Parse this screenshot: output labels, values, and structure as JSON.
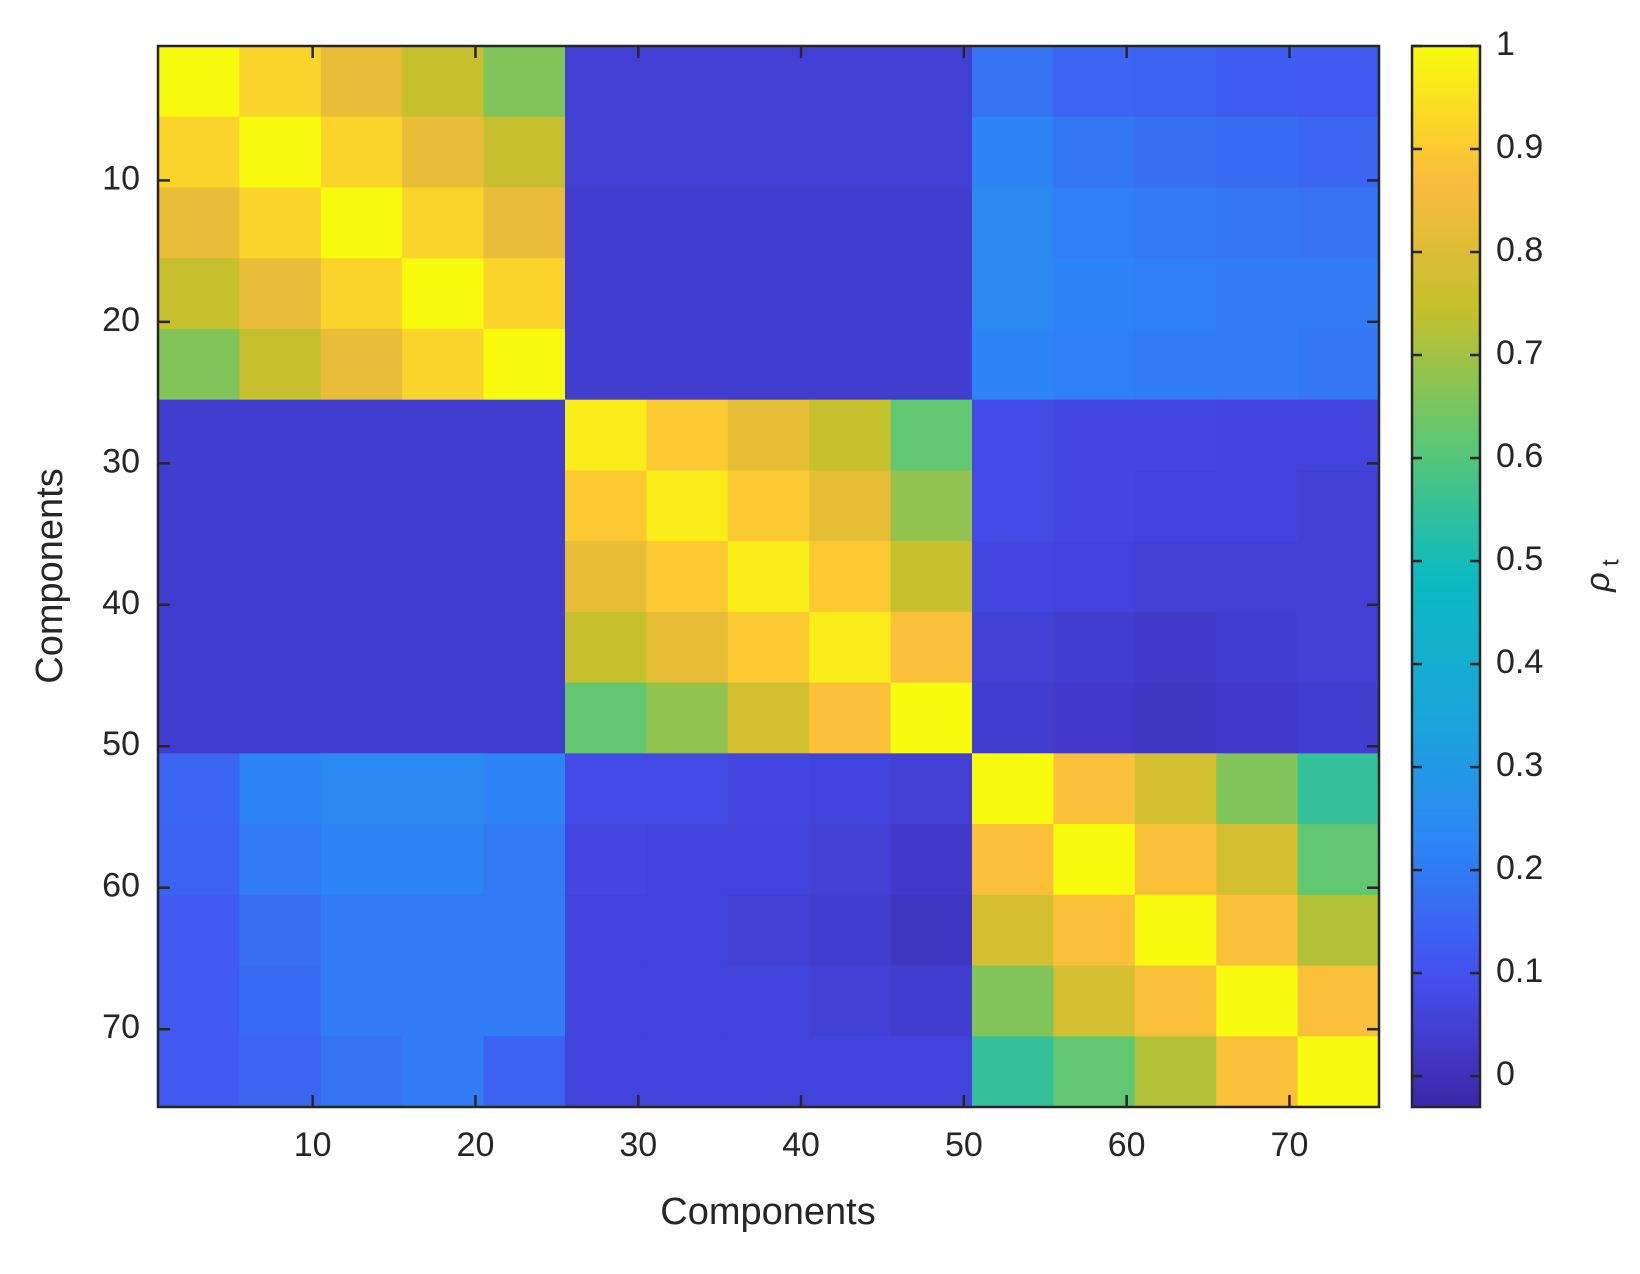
{
  "chart_data": {
    "type": "heatmap",
    "xlabel": "Components",
    "ylabel": "Components",
    "x": [
      3,
      8,
      13,
      18,
      23,
      28,
      33,
      38,
      43,
      48,
      53,
      58,
      63,
      68,
      73
    ],
    "y": [
      3,
      8,
      13,
      18,
      23,
      28,
      33,
      38,
      43,
      48,
      53,
      58,
      63,
      68,
      73
    ],
    "values": [
      [
        1,
        0.92,
        0.83,
        0.75,
        0.66,
        0.05,
        0.05,
        0.05,
        0.05,
        0.05,
        0.18,
        0.15,
        0.14,
        0.13,
        0.12
      ],
      [
        0.92,
        1,
        0.92,
        0.83,
        0.75,
        0.05,
        0.05,
        0.05,
        0.05,
        0.05,
        0.22,
        0.19,
        0.17,
        0.16,
        0.15
      ],
      [
        0.83,
        0.92,
        1,
        0.92,
        0.83,
        0.04,
        0.04,
        0.04,
        0.04,
        0.04,
        0.24,
        0.21,
        0.2,
        0.19,
        0.18
      ],
      [
        0.75,
        0.83,
        0.92,
        1,
        0.92,
        0.04,
        0.04,
        0.04,
        0.04,
        0.04,
        0.24,
        0.22,
        0.21,
        0.2,
        0.2
      ],
      [
        0.66,
        0.75,
        0.83,
        0.92,
        1,
        0.04,
        0.04,
        0.04,
        0.04,
        0.04,
        0.22,
        0.21,
        0.2,
        0.2,
        0.19
      ],
      [
        0.04,
        0.04,
        0.04,
        0.04,
        0.04,
        0.97,
        0.9,
        0.82,
        0.75,
        0.62,
        0.08,
        0.07,
        0.07,
        0.06,
        0.06
      ],
      [
        0.04,
        0.04,
        0.04,
        0.04,
        0.04,
        0.9,
        0.97,
        0.9,
        0.82,
        0.68,
        0.08,
        0.07,
        0.06,
        0.06,
        0.05
      ],
      [
        0.04,
        0.04,
        0.04,
        0.04,
        0.04,
        0.82,
        0.9,
        0.97,
        0.9,
        0.75,
        0.07,
        0.06,
        0.05,
        0.05,
        0.05
      ],
      [
        0.04,
        0.04,
        0.04,
        0.04,
        0.04,
        0.75,
        0.82,
        0.9,
        0.97,
        0.88,
        0.05,
        0.04,
        0.03,
        0.04,
        0.05
      ],
      [
        0.04,
        0.04,
        0.04,
        0.04,
        0.04,
        0.62,
        0.68,
        0.78,
        0.88,
        1,
        0.04,
        0.03,
        0.02,
        0.03,
        0.04
      ],
      [
        0.15,
        0.22,
        0.24,
        0.24,
        0.22,
        0.08,
        0.08,
        0.07,
        0.06,
        0.05,
        1,
        0.88,
        0.78,
        0.66,
        0.55
      ],
      [
        0.14,
        0.2,
        0.22,
        0.22,
        0.2,
        0.07,
        0.06,
        0.06,
        0.05,
        0.03,
        0.88,
        1,
        0.88,
        0.78,
        0.62
      ],
      [
        0.12,
        0.17,
        0.2,
        0.2,
        0.2,
        0.06,
        0.06,
        0.05,
        0.04,
        0.02,
        0.78,
        0.88,
        1,
        0.88,
        0.72
      ],
      [
        0.12,
        0.16,
        0.2,
        0.2,
        0.2,
        0.06,
        0.06,
        0.06,
        0.05,
        0.04,
        0.66,
        0.78,
        0.88,
        1,
        0.88
      ],
      [
        0.12,
        0.15,
        0.18,
        0.2,
        0.14,
        0.06,
        0.06,
        0.06,
        0.06,
        0.06,
        0.55,
        0.62,
        0.72,
        0.88,
        1
      ]
    ],
    "xlim": [
      0.5,
      75.5
    ],
    "ylim": [
      0.5,
      75.5
    ],
    "y_reversed": true,
    "xticks": [
      10,
      20,
      30,
      40,
      50,
      60,
      70
    ],
    "yticks": [
      10,
      20,
      30,
      40,
      50,
      60,
      70
    ],
    "clim": [
      -0.03,
      1
    ],
    "cticks": [
      0,
      0.1,
      0.2,
      0.3,
      0.4,
      0.5,
      0.6,
      0.7,
      0.8,
      0.9,
      1
    ],
    "colormap": [
      "#3e26a8",
      "#4450ef",
      "#2c87f5",
      "#19a7d8",
      "#0cbac0",
      "#5cc773",
      "#c4c02c",
      "#fbbc3c",
      "#f9fb0e"
    ],
    "colorbar_symbol": "ρ",
    "colorbar_subscript": "t"
  }
}
